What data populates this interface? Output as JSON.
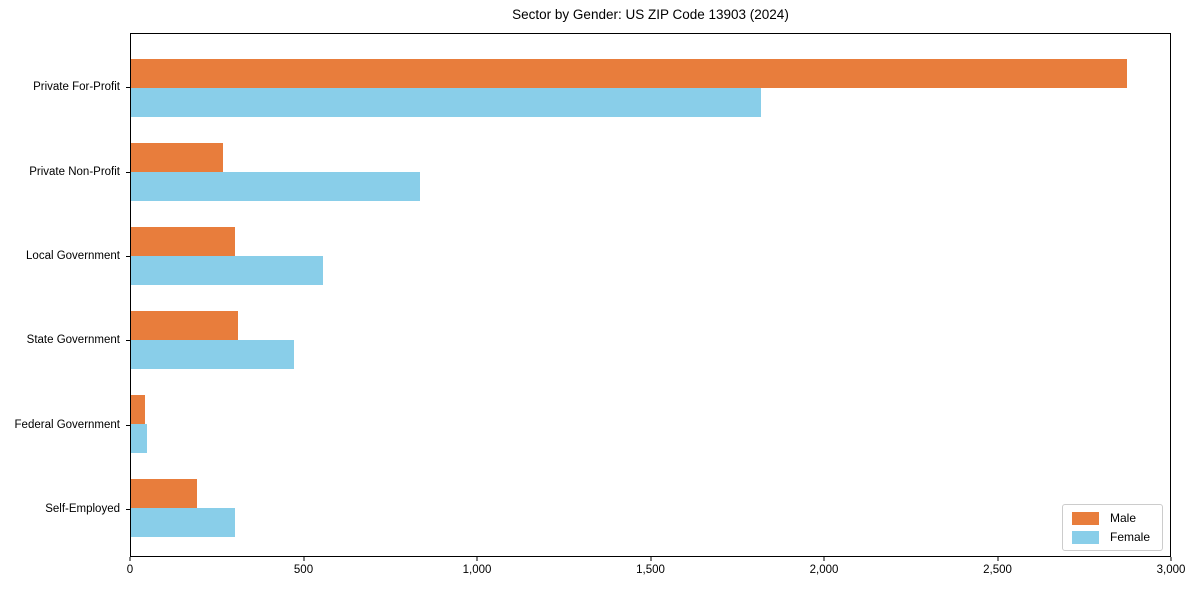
{
  "chart_data": {
    "type": "bar",
    "orientation": "horizontal",
    "title": "Sector by Gender: US ZIP Code 13903 (2024)",
    "categories": [
      "Private For-Profit",
      "Private Non-Profit",
      "Local Government",
      "State Government",
      "Federal Government",
      "Self-Employed"
    ],
    "series": [
      {
        "name": "Male",
        "color": "#e87d3c",
        "values": [
          2875,
          265,
          300,
          310,
          40,
          190
        ]
      },
      {
        "name": "Female",
        "color": "#89cee9",
        "values": [
          1820,
          835,
          555,
          470,
          45,
          300
        ]
      }
    ],
    "xlim": [
      0,
      3000
    ],
    "x_tick_values": [
      0,
      500,
      1000,
      1500,
      2000,
      2500,
      3000
    ],
    "x_tick_labels": [
      "0",
      "500",
      "1,000",
      "1,500",
      "2,000",
      "2,500",
      "3,000"
    ],
    "xlabel": "",
    "ylabel": "",
    "grid": false,
    "legend_position": "lower right",
    "colors": {
      "male": "#e87d3c",
      "female": "#89cee9",
      "axis": "#000000",
      "legend_border": "#cccccc"
    }
  }
}
